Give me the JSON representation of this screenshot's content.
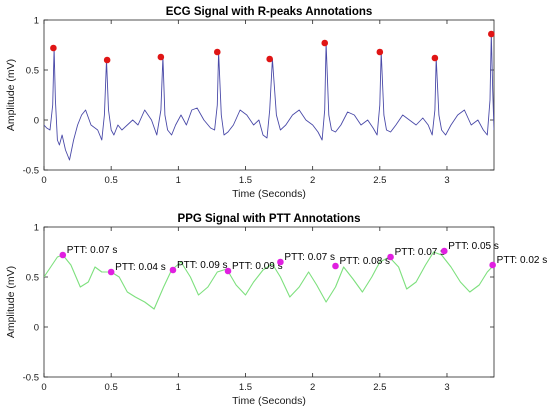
{
  "chart_data": [
    {
      "type": "line",
      "title": "ECG Signal with R-peaks Annotations",
      "xlabel": "Time (Seconds)",
      "ylabel": "Amplitude (mV)",
      "xlim": [
        0,
        3.35
      ],
      "ylim": [
        -0.5,
        1
      ],
      "xticks": [
        0,
        0.5,
        1,
        1.5,
        2,
        2.5,
        3
      ],
      "xtick_labels": [
        "0",
        "0.5",
        "1",
        "1.5",
        "2",
        "2.5",
        "3"
      ],
      "yticks": [
        -0.5,
        0,
        0.5,
        1
      ],
      "ytick_labels": [
        "-0.5",
        "0",
        "0.5",
        "1"
      ],
      "grid": false,
      "line_color": "#4a4aa8",
      "marker_color": "#e01515",
      "series": [
        {
          "x": [
            0.0,
            0.02,
            0.045,
            0.065,
            0.075,
            0.085,
            0.1,
            0.115,
            0.135,
            0.16,
            0.19,
            0.22,
            0.25,
            0.28,
            0.31,
            0.35,
            0.4,
            0.43,
            0.45,
            0.465,
            0.48,
            0.5,
            0.52,
            0.55,
            0.58,
            0.62,
            0.66,
            0.7,
            0.75,
            0.8,
            0.84,
            0.87,
            0.885,
            0.9,
            0.92,
            0.95,
            0.98,
            1.02,
            1.06,
            1.1,
            1.14,
            1.19,
            1.24,
            1.27,
            1.29,
            1.3,
            1.32,
            1.34,
            1.37,
            1.41,
            1.46,
            1.51,
            1.56,
            1.6,
            1.63,
            1.66,
            1.68,
            1.7,
            1.73,
            1.76,
            1.8,
            1.85,
            1.9,
            1.95,
            2.0,
            2.04,
            2.07,
            2.09,
            2.1,
            2.12,
            2.14,
            2.17,
            2.21,
            2.26,
            2.31,
            2.36,
            2.41,
            2.45,
            2.48,
            2.5,
            2.51,
            2.53,
            2.55,
            2.58,
            2.62,
            2.67,
            2.72,
            2.77,
            2.82,
            2.86,
            2.89,
            2.91,
            2.92,
            2.94,
            2.96,
            2.99,
            3.03,
            3.08,
            3.13,
            3.18,
            3.23,
            3.27,
            3.3,
            3.32,
            3.33,
            3.34,
            3.35
          ],
          "y": [
            -0.05,
            -0.08,
            -0.1,
            0.15,
            0.72,
            0.2,
            -0.2,
            -0.25,
            -0.15,
            -0.3,
            -0.4,
            -0.2,
            -0.05,
            0.05,
            0.1,
            -0.05,
            -0.1,
            -0.2,
            0.05,
            0.6,
            0.1,
            -0.1,
            -0.15,
            -0.05,
            -0.1,
            -0.05,
            0.0,
            -0.05,
            0.1,
            0.0,
            -0.15,
            0.1,
            0.63,
            0.05,
            -0.1,
            -0.15,
            -0.05,
            0.05,
            -0.05,
            0.1,
            0.12,
            0.0,
            -0.08,
            -0.1,
            0.15,
            0.68,
            0.05,
            -0.15,
            -0.12,
            -0.05,
            0.1,
            0.05,
            -0.05,
            0.0,
            -0.15,
            -0.18,
            0.1,
            0.61,
            0.05,
            -0.1,
            -0.05,
            0.05,
            0.1,
            0.0,
            -0.05,
            -0.12,
            -0.2,
            0.1,
            0.77,
            0.05,
            -0.1,
            -0.12,
            -0.05,
            0.08,
            0.05,
            -0.05,
            0.0,
            -0.08,
            -0.15,
            0.15,
            0.68,
            0.05,
            -0.1,
            -0.12,
            -0.05,
            0.05,
            0.0,
            -0.05,
            0.02,
            -0.05,
            -0.15,
            0.1,
            0.62,
            0.05,
            -0.1,
            -0.15,
            -0.05,
            0.05,
            0.1,
            -0.05,
            0.0,
            -0.1,
            -0.15,
            0.2,
            0.86,
            0.3,
            -0.1
          ]
        }
      ],
      "r_peaks": {
        "x": [
          0.07,
          0.47,
          0.87,
          1.29,
          1.68,
          2.09,
          2.5,
          2.91,
          3.33
        ],
        "y": [
          0.72,
          0.6,
          0.63,
          0.68,
          0.61,
          0.77,
          0.68,
          0.62,
          0.86
        ]
      }
    },
    {
      "type": "line",
      "title": "PPG Signal with PTT Annotations",
      "xlabel": "Time (Seconds)",
      "ylabel": "Amplitude (mV)",
      "xlim": [
        0,
        3.35
      ],
      "ylim": [
        -0.5,
        1
      ],
      "xticks": [
        0,
        0.5,
        1,
        1.5,
        2,
        2.5,
        3
      ],
      "xtick_labels": [
        "0",
        "0.5",
        "1",
        "1.5",
        "2",
        "2.5",
        "3"
      ],
      "yticks": [
        -0.5,
        0,
        0.5,
        1
      ],
      "ytick_labels": [
        "-0.5",
        "0",
        "0.5",
        "1"
      ],
      "grid": false,
      "line_color": "#7ee07e",
      "marker_color": "#e020e0",
      "series": [
        {
          "x": [
            0.0,
            0.05,
            0.1,
            0.14,
            0.2,
            0.27,
            0.33,
            0.38,
            0.43,
            0.5,
            0.56,
            0.62,
            0.68,
            0.75,
            0.82,
            0.89,
            0.95,
            1.02,
            1.09,
            1.15,
            1.22,
            1.29,
            1.36,
            1.43,
            1.5,
            1.56,
            1.63,
            1.7,
            1.76,
            1.83,
            1.9,
            1.97,
            2.03,
            2.1,
            2.17,
            2.23,
            2.3,
            2.37,
            2.44,
            2.5,
            2.57,
            2.64,
            2.7,
            2.77,
            2.84,
            2.9,
            2.96,
            3.03,
            3.1,
            3.17,
            3.24,
            3.3,
            3.35
          ],
          "y": [
            0.5,
            0.6,
            0.7,
            0.72,
            0.62,
            0.4,
            0.45,
            0.6,
            0.55,
            0.55,
            0.5,
            0.35,
            0.3,
            0.25,
            0.18,
            0.4,
            0.57,
            0.65,
            0.5,
            0.32,
            0.4,
            0.55,
            0.58,
            0.42,
            0.32,
            0.45,
            0.57,
            0.63,
            0.5,
            0.3,
            0.4,
            0.55,
            0.42,
            0.25,
            0.4,
            0.6,
            0.48,
            0.35,
            0.5,
            0.65,
            0.7,
            0.6,
            0.38,
            0.45,
            0.62,
            0.75,
            0.72,
            0.6,
            0.45,
            0.35,
            0.42,
            0.55,
            0.62
          ]
        }
      ],
      "annotations": [
        {
          "x": 0.14,
          "y": 0.72,
          "label": "PTT: 0.07 s"
        },
        {
          "x": 0.5,
          "y": 0.55,
          "label": "PTT: 0.04 s"
        },
        {
          "x": 0.96,
          "y": 0.57,
          "label": "PTT: 0.09 s"
        },
        {
          "x": 1.37,
          "y": 0.56,
          "label": "PTT: 0.09 s"
        },
        {
          "x": 1.76,
          "y": 0.65,
          "label": "PTT: 0.07 s"
        },
        {
          "x": 2.17,
          "y": 0.61,
          "label": "PTT: 0.08 s"
        },
        {
          "x": 2.58,
          "y": 0.7,
          "label": "PTT: 0.07 s"
        },
        {
          "x": 2.98,
          "y": 0.76,
          "label": "PTT: 0.05 s"
        },
        {
          "x": 3.34,
          "y": 0.62,
          "label": "PTT: 0.02 s"
        }
      ]
    }
  ]
}
